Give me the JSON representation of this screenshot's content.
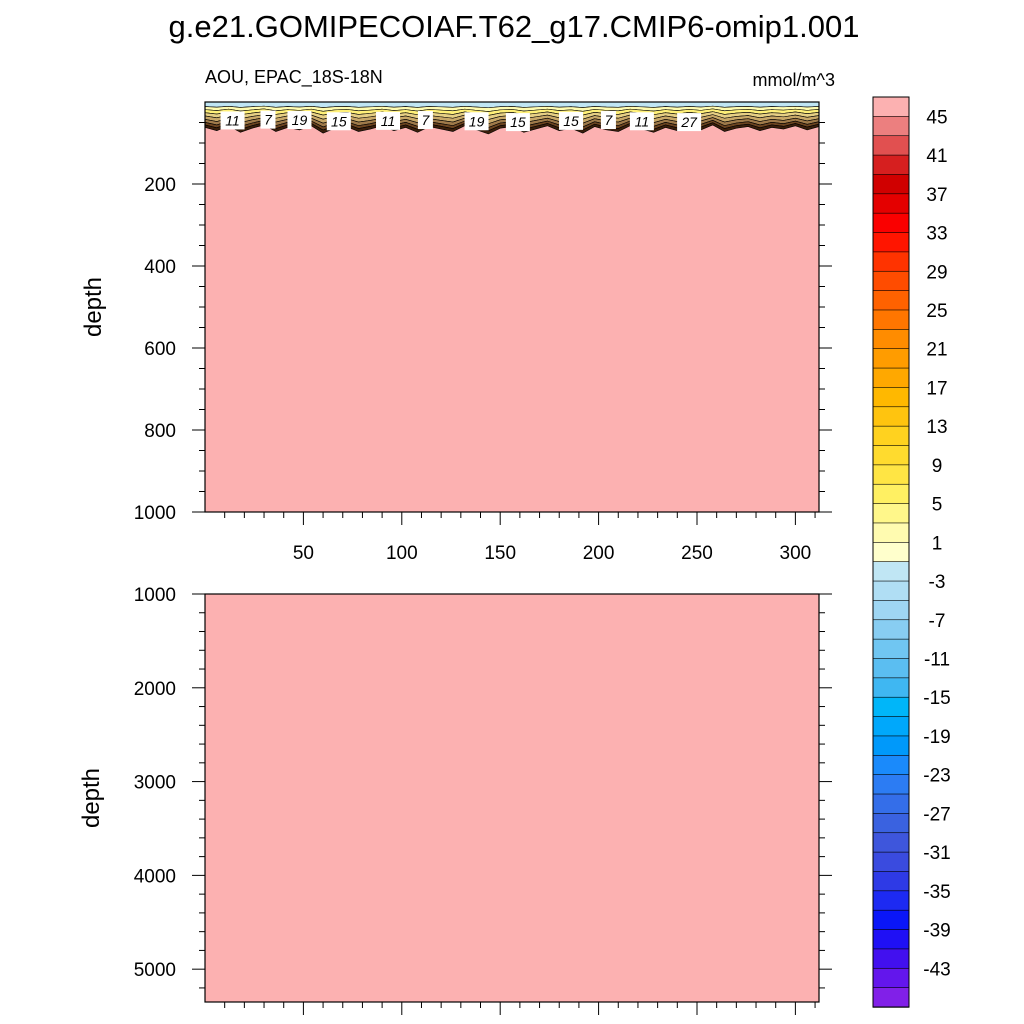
{
  "title": "g.e21.GOMIPECOIAF.T62_g17.CMIP6-omip1.001",
  "chart_data": [
    {
      "type": "heatmap",
      "panel": "top",
      "title_left": "AOU, EPAC_18S-18N",
      "title_right": "mmol/m^3",
      "xlabel": "",
      "ylabel": "depth",
      "xlim": [
        0,
        312
      ],
      "ylim": [
        1000,
        0
      ],
      "x_ticks": [
        50,
        100,
        150,
        200,
        250,
        300
      ],
      "y_ticks": [
        200,
        400,
        600,
        800,
        1000
      ],
      "fill_below_surface_layer": 47,
      "surface_layer": {
        "x": [
          0,
          6,
          12,
          18,
          24,
          30,
          36,
          42,
          48,
          54,
          60,
          66,
          72,
          78,
          84,
          90,
          96,
          102,
          108,
          114,
          120,
          126,
          132,
          138,
          144,
          150,
          156,
          162,
          168,
          174,
          180,
          186,
          192,
          198,
          204,
          210,
          216,
          222,
          228,
          234,
          240,
          246,
          252,
          258,
          264,
          270,
          276,
          282,
          288,
          294,
          300,
          306,
          312
        ],
        "bottom_depth": [
          62,
          70,
          58,
          74,
          64,
          56,
          72,
          62,
          68,
          58,
          76,
          64,
          60,
          72,
          66,
          58,
          70,
          62,
          74,
          60,
          66,
          72,
          58,
          68,
          78,
          64,
          60,
          74,
          66,
          58,
          70,
          64,
          76,
          60,
          68,
          72,
          58,
          66,
          74,
          62,
          70,
          60,
          68,
          56,
          72,
          64,
          60,
          70,
          62,
          66,
          58,
          68,
          60
        ],
        "contour_labels": [
          {
            "x": 14,
            "depth": 45,
            "value": "11"
          },
          {
            "x": 32,
            "depth": 43,
            "value": "7"
          },
          {
            "x": 48,
            "depth": 44,
            "value": "19"
          },
          {
            "x": 68,
            "depth": 47,
            "value": "15"
          },
          {
            "x": 93,
            "depth": 46,
            "value": "11"
          },
          {
            "x": 112,
            "depth": 44,
            "value": "7"
          },
          {
            "x": 138,
            "depth": 47,
            "value": "19"
          },
          {
            "x": 159,
            "depth": 49,
            "value": "15"
          },
          {
            "x": 186,
            "depth": 46,
            "value": "15"
          },
          {
            "x": 205,
            "depth": 44,
            "value": "7"
          },
          {
            "x": 222,
            "depth": 47,
            "value": "11"
          },
          {
            "x": 246,
            "depth": 49,
            "value": "27"
          }
        ]
      }
    },
    {
      "type": "heatmap",
      "panel": "bottom",
      "xlabel": "",
      "ylabel": "depth",
      "xlim": [
        0,
        312
      ],
      "ylim": [
        1000,
        5350
      ],
      "y_ticks": [
        1000,
        2000,
        3000,
        4000,
        5000
      ],
      "fill_value": 47
    }
  ],
  "colorbar": {
    "labels": [
      "45",
      "41",
      "37",
      "33",
      "29",
      "25",
      "21",
      "17",
      "13",
      "9",
      "5",
      "1",
      "-3",
      "-7",
      "-11",
      "-15",
      "-19",
      "-23",
      "-27",
      "-31",
      "-35",
      "-39",
      "-43"
    ],
    "colors": [
      "#fcb1b1",
      "#ec7f7f",
      "#e15050",
      "#d61f1f",
      "#d00000",
      "#e40000",
      "#fa0000",
      "#ff1500",
      "#ff3300",
      "#ff4c00",
      "#ff6200",
      "#ff7600",
      "#ff8c00",
      "#ff9c00",
      "#ffa800",
      "#ffb800",
      "#ffc40f",
      "#ffd21f",
      "#ffdb2e",
      "#ffe544",
      "#fff062",
      "#fff78a",
      "#fffbb0",
      "#ffffcc",
      "#c0e6f4",
      "#b0def4",
      "#9fd6f3",
      "#88cdf2",
      "#70c6f2",
      "#5bbef1",
      "#3fb7f2",
      "#00b6f9",
      "#00a8fb",
      "#0099fa",
      "#1a8afb",
      "#2c7cf3",
      "#346ee9",
      "#3a62e0",
      "#3e56dc",
      "#3a4bdf",
      "#2e3ae6",
      "#1d2af2",
      "#0a16f8",
      "#1f10f5",
      "#4210ef",
      "#6316ec",
      "#8120e8"
    ]
  }
}
